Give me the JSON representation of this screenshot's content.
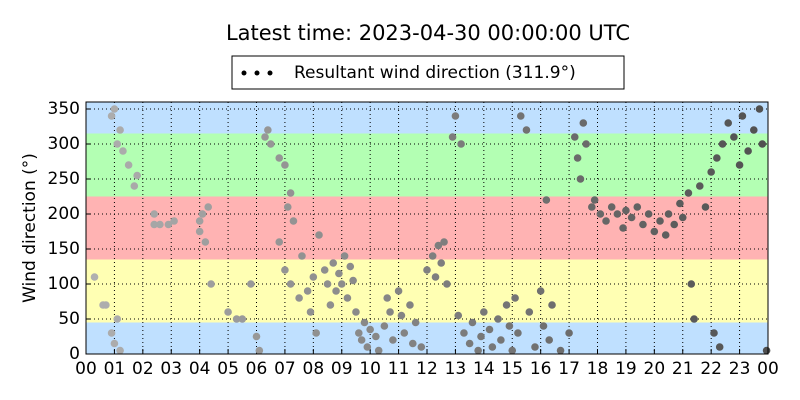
{
  "chart_data": {
    "type": "scatter",
    "title": "Latest time: 2023-04-30 00:00:00 UTC",
    "y_label": "Wind direction (°)",
    "series": [
      {
        "name": "Resultant wind direction (311.9°)",
        "color": "#000000",
        "point_colors": [
          "#b0b0b0",
          "#505050"
        ],
        "x": [
          0.3,
          0.6,
          0.7,
          0.9,
          1.0,
          1.1,
          1.2,
          0.9,
          1.0,
          1.2,
          1.1,
          1.3,
          1.5,
          1.7,
          1.8,
          2.4,
          2.6,
          2.9,
          3.1,
          2.4,
          4.0,
          4.1,
          4.3,
          4.2,
          4.0,
          4.4,
          5.0,
          5.3,
          5.5,
          5.8,
          6.0,
          6.1,
          6.3,
          6.4,
          6.5,
          6.8,
          7.0,
          7.2,
          7.1,
          7.3,
          6.8,
          7.0,
          7.2,
          7.5,
          7.6,
          7.8,
          7.9,
          8.0,
          8.1,
          8.2,
          8.4,
          8.5,
          8.6,
          8.7,
          8.8,
          8.9,
          9.0,
          9.1,
          9.2,
          9.3,
          9.4,
          9.5,
          9.6,
          9.7,
          9.8,
          9.9,
          10.0,
          10.2,
          10.3,
          10.5,
          10.6,
          10.7,
          10.8,
          11.0,
          11.1,
          11.2,
          11.4,
          11.5,
          11.6,
          11.8,
          12.0,
          12.2,
          12.3,
          12.4,
          12.5,
          12.6,
          12.7,
          12.9,
          13.0,
          13.2,
          13.1,
          13.3,
          13.5,
          13.6,
          13.8,
          13.9,
          14.0,
          14.2,
          14.3,
          14.5,
          14.6,
          14.8,
          14.9,
          15.0,
          15.1,
          15.2,
          15.3,
          15.5,
          15.6,
          15.8,
          16.0,
          16.1,
          16.3,
          16.4,
          16.2,
          16.7,
          17.0,
          17.2,
          17.3,
          17.4,
          17.5,
          17.6,
          17.8,
          17.9,
          18.1,
          18.3,
          18.5,
          18.7,
          18.9,
          19.0,
          19.2,
          19.4,
          19.6,
          19.8,
          20.0,
          20.2,
          20.4,
          20.5,
          20.7,
          20.9,
          21.0,
          21.2,
          21.3,
          21.4,
          21.6,
          21.8,
          22.0,
          22.2,
          22.1,
          22.3,
          22.4,
          22.6,
          22.8,
          23.0,
          23.1,
          23.3,
          23.5,
          23.7,
          23.8,
          23.95
        ],
        "values": [
          110,
          70,
          70,
          340,
          350,
          300,
          320,
          30,
          15,
          5,
          50,
          290,
          270,
          240,
          255,
          185,
          185,
          185,
          190,
          200,
          175,
          200,
          210,
          160,
          190,
          100,
          60,
          50,
          50,
          100,
          25,
          5,
          310,
          320,
          300,
          280,
          270,
          230,
          210,
          190,
          160,
          120,
          100,
          80,
          140,
          90,
          60,
          110,
          30,
          170,
          120,
          100,
          70,
          130,
          90,
          115,
          100,
          140,
          80,
          125,
          105,
          60,
          30,
          20,
          45,
          10,
          35,
          25,
          5,
          40,
          80,
          60,
          20,
          90,
          55,
          30,
          70,
          15,
          45,
          10,
          120,
          140,
          110,
          155,
          130,
          160,
          100,
          310,
          340,
          300,
          55,
          30,
          15,
          45,
          5,
          25,
          60,
          35,
          10,
          50,
          20,
          70,
          40,
          5,
          80,
          30,
          340,
          320,
          60,
          10,
          90,
          40,
          20,
          70,
          220,
          5,
          30,
          310,
          280,
          250,
          330,
          300,
          210,
          220,
          200,
          190,
          210,
          200,
          180,
          205,
          195,
          210,
          185,
          200,
          175,
          190,
          170,
          200,
          185,
          215,
          195,
          230,
          100,
          50,
          240,
          210,
          260,
          280,
          30,
          10,
          300,
          330,
          310,
          270,
          340,
          290,
          320,
          350,
          300,
          5
        ]
      }
    ],
    "bands": [
      {
        "from": 0,
        "to": 45,
        "color": "#bfe0ff"
      },
      {
        "from": 45,
        "to": 135,
        "color": "#ffffb3"
      },
      {
        "from": 135,
        "to": 225,
        "color": "#ffb3b3"
      },
      {
        "from": 225,
        "to": 315,
        "color": "#b3ffb3"
      },
      {
        "from": 315,
        "to": 360,
        "color": "#bfe0ff"
      }
    ],
    "xlim": [
      0,
      24
    ],
    "ylim": [
      0,
      360
    ],
    "xticks": [
      {
        "value": 0,
        "label": "00"
      },
      {
        "value": 1,
        "label": "01"
      },
      {
        "value": 2,
        "label": "02"
      },
      {
        "value": 3,
        "label": "03"
      },
      {
        "value": 4,
        "label": "04"
      },
      {
        "value": 5,
        "label": "05"
      },
      {
        "value": 6,
        "label": "06"
      },
      {
        "value": 7,
        "label": "07"
      },
      {
        "value": 8,
        "label": "08"
      },
      {
        "value": 9,
        "label": "09"
      },
      {
        "value": 10,
        "label": "10"
      },
      {
        "value": 11,
        "label": "11"
      },
      {
        "value": 12,
        "label": "12"
      },
      {
        "value": 13,
        "label": "13"
      },
      {
        "value": 14,
        "label": "14"
      },
      {
        "value": 15,
        "label": "15"
      },
      {
        "value": 16,
        "label": "16"
      },
      {
        "value": 17,
        "label": "17"
      },
      {
        "value": 18,
        "label": "18"
      },
      {
        "value": 19,
        "label": "19"
      },
      {
        "value": 20,
        "label": "20"
      },
      {
        "value": 21,
        "label": "21"
      },
      {
        "value": 22,
        "label": "22"
      },
      {
        "value": 23,
        "label": "23"
      },
      {
        "value": 24,
        "label": "00"
      }
    ],
    "yticks": [
      0,
      50,
      100,
      150,
      200,
      250,
      300,
      350
    ],
    "grid": true
  }
}
